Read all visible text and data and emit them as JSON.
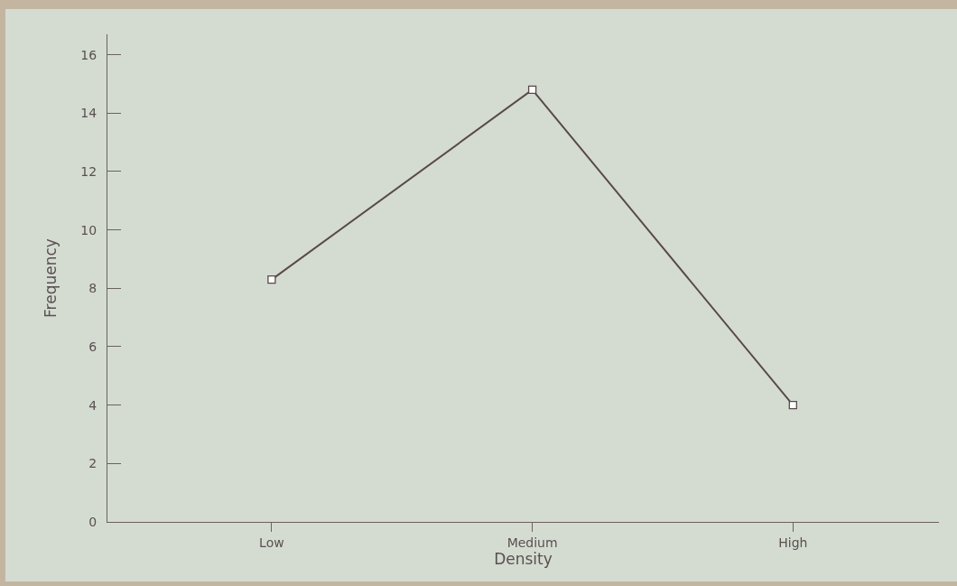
{
  "chart_data": {
    "type": "line",
    "xlabel": "Density",
    "ylabel": "Frequency",
    "categories": [
      "Low",
      "Medium",
      "High"
    ],
    "series": [
      {
        "color": "#5a4a48",
        "values": [
          8.3,
          14.8,
          4.0
        ]
      }
    ],
    "ylim": [
      0,
      16.7
    ],
    "yticks": [
      0,
      2,
      4,
      6,
      8,
      10,
      12,
      14,
      16
    ],
    "grid": false,
    "legend": false,
    "marker": "square",
    "line_style": "solid"
  }
}
